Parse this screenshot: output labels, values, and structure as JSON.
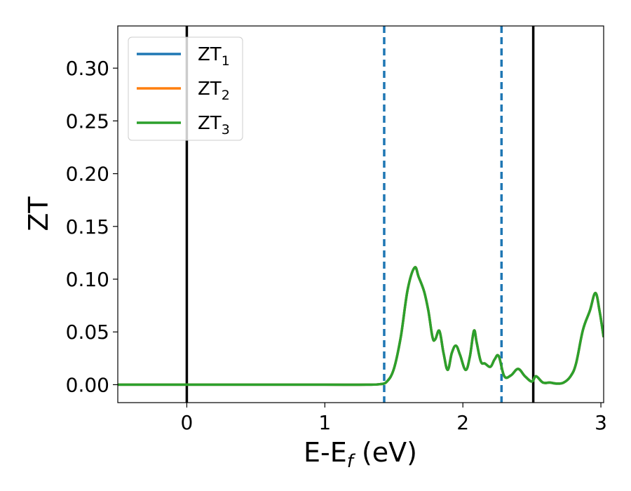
{
  "chart_data": {
    "type": "line",
    "xlabel": "E-E",
    "xlabel_sub": "f",
    "xlabel_unit": " (eV)",
    "ylabel": "ZT",
    "xlim": [
      -0.5,
      3.02
    ],
    "ylim": [
      -0.017,
      0.34
    ],
    "xticks": [
      0,
      1,
      2,
      3
    ],
    "yticks": [
      0.0,
      0.05,
      0.1,
      0.15,
      0.2,
      0.25,
      0.3
    ],
    "ytick_labels": [
      "0.00",
      "0.05",
      "0.10",
      "0.15",
      "0.20",
      "0.25",
      "0.30"
    ],
    "grid": false,
    "legend_position": "top-left",
    "vlines": [
      {
        "x": 0.0,
        "style": "solid",
        "color": "#000000"
      },
      {
        "x": 2.51,
        "style": "solid",
        "color": "#000000"
      },
      {
        "x": 1.43,
        "style": "dashed",
        "color": "#1f77b4"
      },
      {
        "x": 2.28,
        "style": "dashed",
        "color": "#1f77b4"
      }
    ],
    "series": [
      {
        "name": "ZT",
        "sub": "1",
        "color": "#1f77b4"
      },
      {
        "name": "ZT",
        "sub": "2",
        "color": "#ff7f0e"
      },
      {
        "name": "ZT",
        "sub": "3",
        "color": "#2ca02c"
      }
    ],
    "x": [
      -0.5,
      0.0,
      0.5,
      1.0,
      1.3,
      1.4,
      1.45,
      1.5,
      1.55,
      1.6,
      1.65,
      1.68,
      1.72,
      1.75,
      1.78,
      1.8,
      1.83,
      1.86,
      1.89,
      1.92,
      1.95,
      1.98,
      2.02,
      2.05,
      2.08,
      2.1,
      2.13,
      2.16,
      2.2,
      2.23,
      2.26,
      2.3,
      2.35,
      2.4,
      2.45,
      2.5,
      2.53,
      2.58,
      2.63,
      2.68,
      2.73,
      2.78,
      2.82,
      2.87,
      2.92,
      2.96,
      2.99,
      3.02
    ],
    "values": [
      0.0,
      0.0,
      0.0,
      0.0,
      0.0,
      0.0005,
      0.003,
      0.015,
      0.045,
      0.09,
      0.111,
      0.102,
      0.088,
      0.07,
      0.045,
      0.043,
      0.051,
      0.03,
      0.014,
      0.03,
      0.037,
      0.028,
      0.014,
      0.026,
      0.051,
      0.04,
      0.022,
      0.02,
      0.017,
      0.024,
      0.027,
      0.008,
      0.009,
      0.015,
      0.008,
      0.003,
      0.008,
      0.002,
      0.002,
      0.001,
      0.002,
      0.008,
      0.02,
      0.052,
      0.07,
      0.087,
      0.07,
      0.045
    ]
  }
}
